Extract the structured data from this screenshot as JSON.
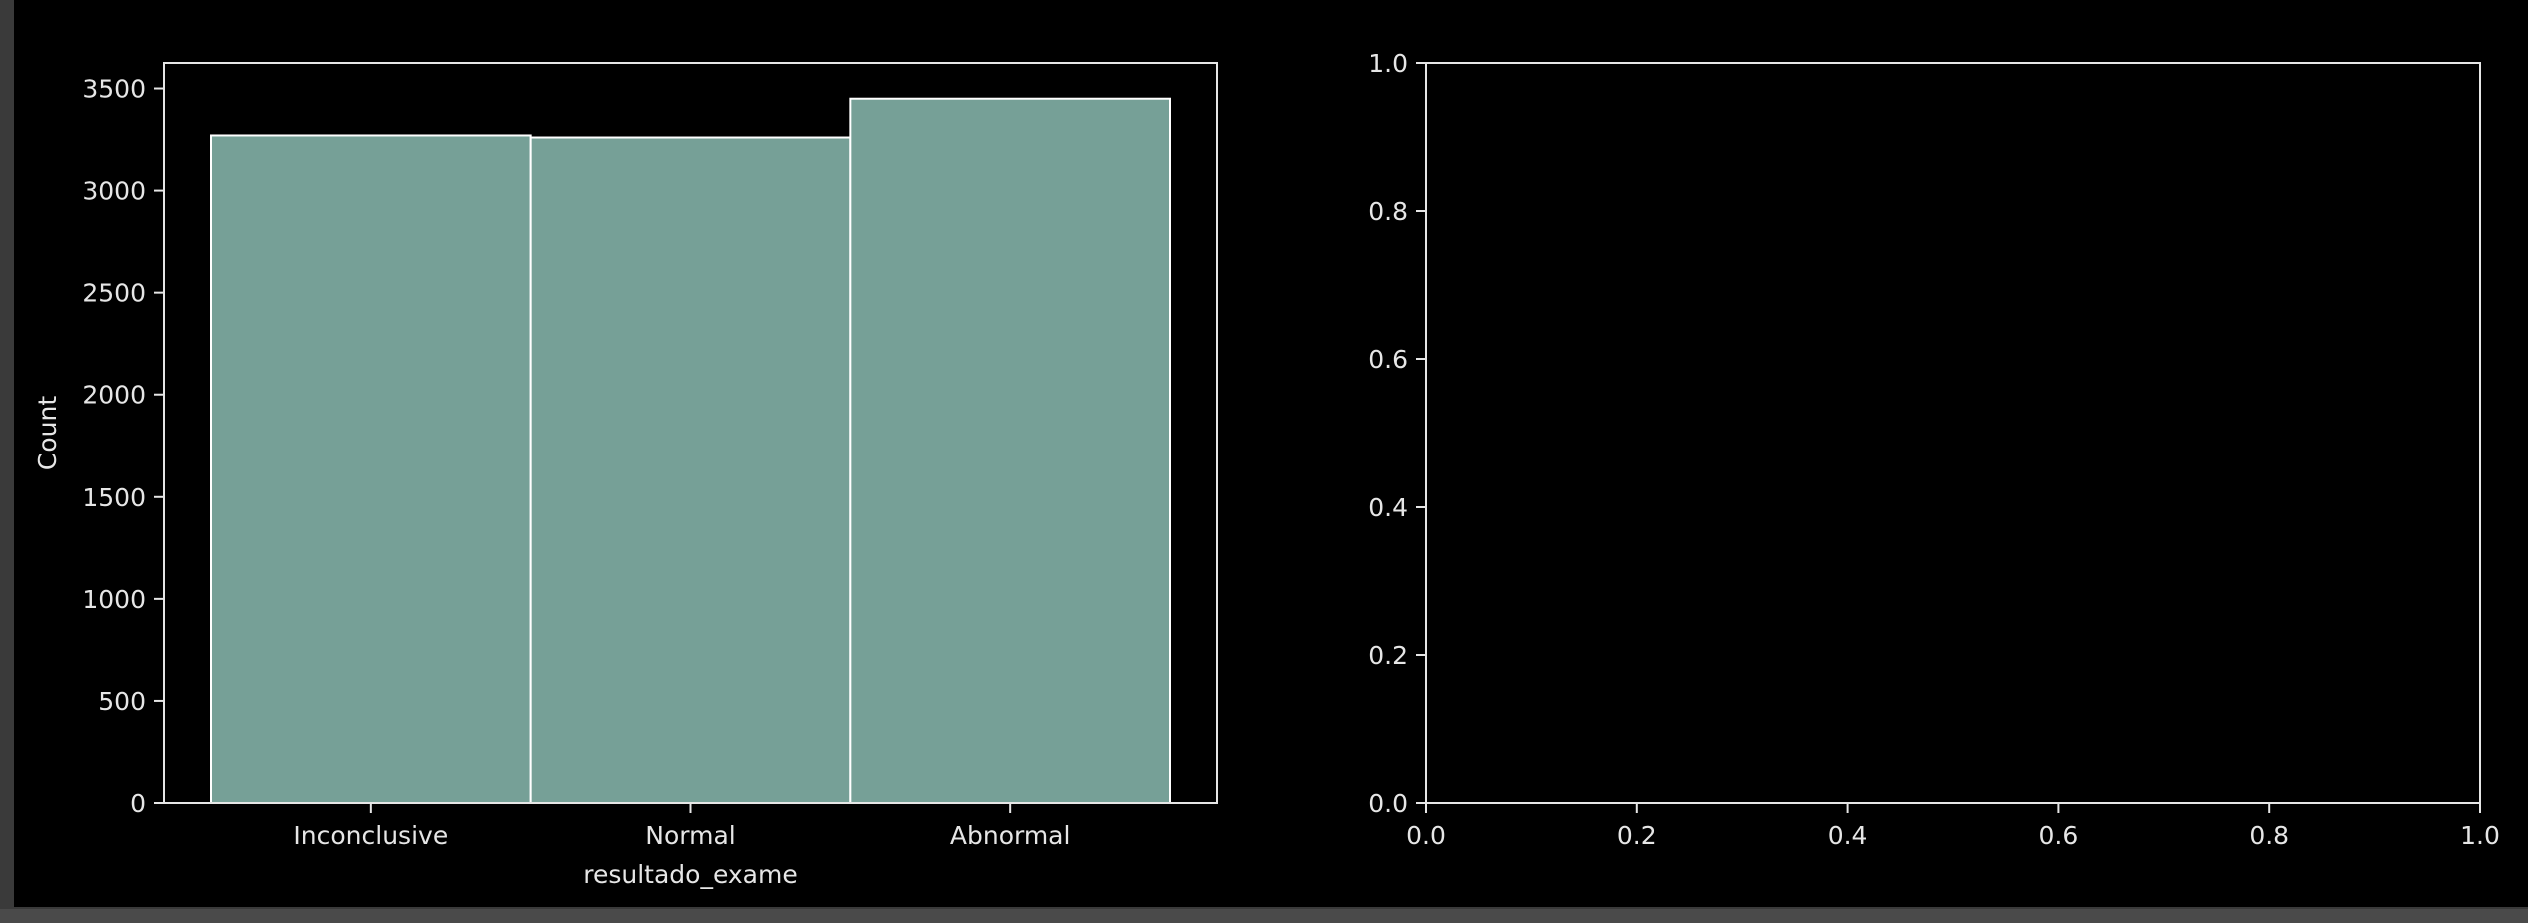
{
  "chart_data": [
    {
      "type": "bar",
      "title": "",
      "xlabel": "resultado_exame",
      "ylabel": "Count",
      "categories": [
        "Inconclusive",
        "Normal",
        "Abnormal"
      ],
      "values": [
        3270,
        3260,
        3450
      ],
      "ylim": [
        0,
        3625
      ],
      "yticks": [
        0,
        500,
        1000,
        1500,
        2000,
        2500,
        3000,
        3500
      ],
      "grid": false,
      "bar_color": "#76a097",
      "edge_color": "#ffffff"
    },
    {
      "type": "scatter",
      "title": "",
      "xlabel": "",
      "ylabel": "",
      "x": [],
      "y": [],
      "xlim": [
        0.0,
        1.0
      ],
      "ylim": [
        0.0,
        1.0
      ],
      "xticks": [
        "0.0",
        "0.2",
        "0.4",
        "0.6",
        "0.8",
        "1.0"
      ],
      "yticks": [
        "0.0",
        "0.2",
        "0.4",
        "0.6",
        "0.8",
        "1.0"
      ],
      "grid": false
    }
  ],
  "colors": {
    "figure_background": "#000000",
    "outer_frame": "#3a3a3a",
    "axes_edge": "#e6e6e6",
    "text": "#e6e6e6"
  }
}
